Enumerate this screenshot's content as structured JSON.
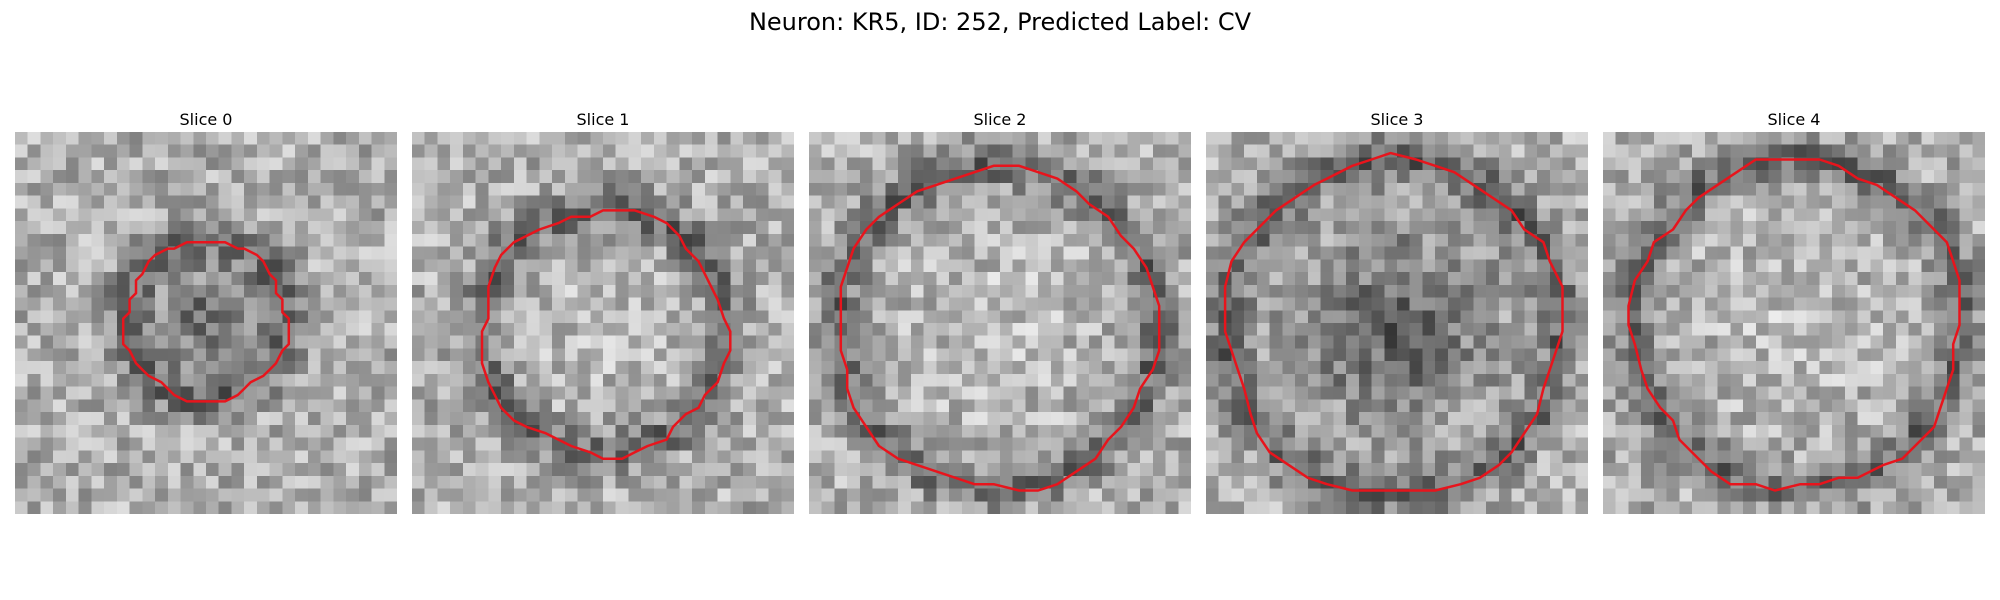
{
  "figure": {
    "title": "Neuron: KR5, ID: 252, Predicted Label: CV"
  },
  "colors": {
    "contour": "#e8141c",
    "background": "#ffffff"
  },
  "panels": [
    {
      "title": "Slice 0",
      "radius_fraction": 0.21,
      "center": [
        0.5,
        0.49
      ],
      "dark_center": true
    },
    {
      "title": "Slice 1",
      "radius_fraction": 0.32,
      "center": [
        0.5,
        0.52
      ],
      "dark_center": false
    },
    {
      "title": "Slice 2",
      "radius_fraction": 0.42,
      "center": [
        0.49,
        0.51
      ],
      "dark_center": false
    },
    {
      "title": "Slice 3",
      "radius_fraction": 0.44,
      "center": [
        0.49,
        0.51
      ],
      "dark_center": true
    },
    {
      "title": "Slice 4",
      "radius_fraction": 0.43,
      "center": [
        0.51,
        0.5
      ],
      "dark_center": false
    }
  ]
}
